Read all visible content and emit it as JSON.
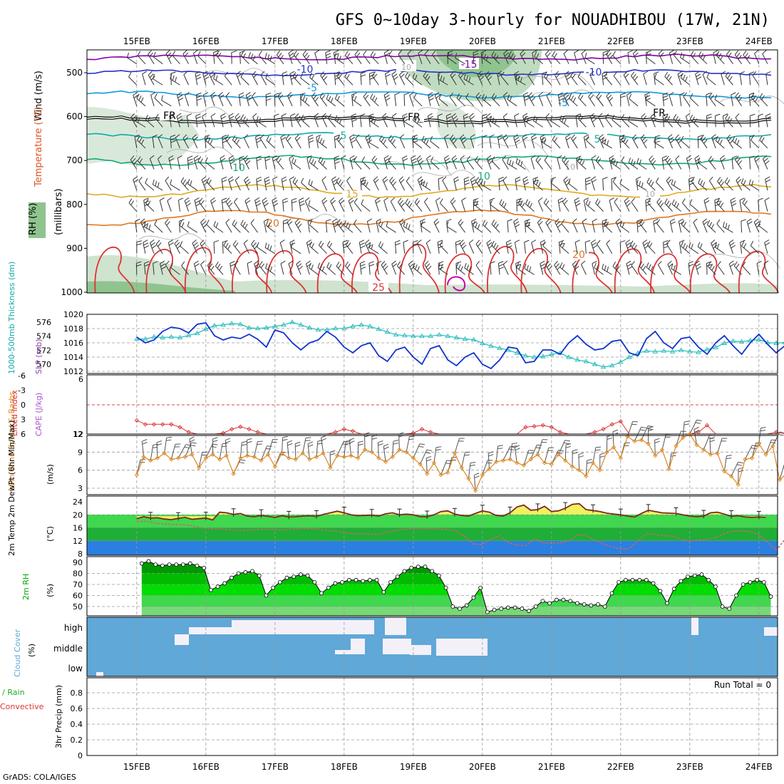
{
  "title": "GFS 0~10day 3-hourly for NOUADHIBOU (17W, 21N)",
  "credit": "GrADS: COLA/IGES",
  "date_labels": [
    "15FEB",
    "16FEB",
    "17FEB",
    "18FEB",
    "19FEB",
    "20FEB",
    "21FEB",
    "22FEB",
    "23FEB",
    "24FEB"
  ],
  "colors": {
    "rh": "#8fbf8f",
    "temp_warm": "#dd2222",
    "temp_cool": "#2266cc",
    "frz": "#000000",
    "slp": "#1133cc",
    "thick": "#22bbbb",
    "li": "#dd3333",
    "wind": "#dd8822",
    "rh2m": "#00aa00",
    "cloud": "#5fa8d8"
  },
  "panels": {
    "upper": {
      "ylabel_wind": "Wind (m/s)",
      "ylabel_temp": "Temperature (°C)",
      "ylabel_rh": "RH (%)",
      "ylabel_mb": "(millibars)",
      "ticks": [
        "500",
        "600",
        "700",
        "800",
        "900",
        "1000"
      ],
      "freezing_label": "FR",
      "contour_labels": [
        {
          "text": "-15",
          "color": "#8800aa"
        },
        {
          "text": "-10",
          "color": "#2233cc"
        },
        {
          "text": "-10",
          "color": "#2233cc"
        },
        {
          "text": "-5",
          "color": "#1199dd"
        },
        {
          "text": "-5",
          "color": "#1199dd"
        },
        {
          "text": "FR",
          "color": "#000000"
        },
        {
          "text": "FR",
          "color": "#000000"
        },
        {
          "text": "FR",
          "color": "#000000"
        },
        {
          "text": "5",
          "color": "#11aaaa"
        },
        {
          "text": "5",
          "color": "#11aaaa"
        },
        {
          "text": "10",
          "color": "#11aa77"
        },
        {
          "text": "10",
          "color": "#11aa77"
        },
        {
          "text": "15",
          "color": "#ddaa22"
        },
        {
          "text": "20",
          "color": "#dd7722"
        },
        {
          "text": "20",
          "color": "#dd7722"
        },
        {
          "text": "25",
          "color": "#dd3333"
        },
        {
          "text": "10",
          "color": "#aaaaaa"
        },
        {
          "text": "10",
          "color": "#aaaaaa"
        },
        {
          "text": "10",
          "color": "#aaaaaa"
        }
      ]
    },
    "slp": {
      "ylabel_thick": "1000-500mb Thickness (dm)",
      "ylabel_slp": "SLP (mb)",
      "left_ticks": [
        "576",
        "574",
        "572",
        "570"
      ],
      "right_ticks": [
        "1020",
        "1018",
        "1016",
        "1014",
        "1012"
      ]
    },
    "li": {
      "ylabel_li": "Lifted Index",
      "ylabel_cape": "CAPE (J/kg)",
      "left_ticks": [
        "-6",
        "-3",
        "0",
        "3",
        "6"
      ],
      "right_ticks": [
        "6",
        "12"
      ]
    },
    "wind10m": {
      "ylabel": "10m Wind Speed & Barbs",
      "ylabel_unit": "(m/s)",
      "ticks": [
        "12",
        "9",
        "6",
        "3"
      ]
    },
    "temp2m": {
      "ylabel": "2m Temp 2m DewPt (6hr Min/Max)",
      "ylabel_unit": "(°C)",
      "ticks": [
        "24",
        "20",
        "16",
        "12",
        "8"
      ]
    },
    "rh2m": {
      "ylabel": "2m RH",
      "ylabel_unit": "(%)",
      "ticks": [
        "90",
        "80",
        "70",
        "60",
        "50"
      ]
    },
    "cloud": {
      "ylabel": "Cloud Cover",
      "ylabel_unit": "(%)",
      "levels": [
        "high",
        "middle",
        "low"
      ]
    },
    "precip": {
      "ylabel_a": "Total / Rain",
      "ylabel_b": "Convective",
      "ylabel_unit": "3hr Precip (mm)",
      "ticks": [
        "0.8",
        "0.6",
        "0.4",
        "0.2",
        "0"
      ],
      "run_total": "Run Total = 0"
    }
  },
  "chart_data": [
    {
      "type": "line",
      "name": "SLP",
      "x_unit": "days since 15FEB 00Z",
      "ylabel": "SLP (mb)",
      "ylim": [
        1011,
        1021
      ],
      "values": [
        1016.8,
        1016.0,
        1016.4,
        1017.6,
        1018.2,
        1018.0,
        1017.4,
        1018.6,
        1018.8,
        1017.0,
        1016.4,
        1016.8,
        1016.6,
        1017.2,
        1016.5,
        1015.4,
        1017.8,
        1017.4,
        1016.0,
        1015.0,
        1016.0,
        1016.4,
        1017.6,
        1016.8,
        1015.4,
        1014.6,
        1015.6,
        1016.0,
        1014.2,
        1013.4,
        1015.0,
        1015.4,
        1014.0,
        1013.0,
        1015.2,
        1015.6,
        1013.6,
        1012.8,
        1014.0,
        1014.6,
        1013.0,
        1012.4,
        1013.6,
        1015.4,
        1015.2,
        1013.2,
        1013.4,
        1015.0,
        1015.0,
        1014.4,
        1016.0,
        1017.0,
        1015.8,
        1015.0,
        1015.2,
        1016.2,
        1016.4,
        1014.6,
        1014.2,
        1016.6,
        1017.6,
        1016.0,
        1015.2,
        1016.6,
        1016.8,
        1015.4,
        1014.4,
        1016.0,
        1017.0,
        1015.6,
        1014.4,
        1016.0,
        1017.2,
        1015.8,
        1014.6,
        1015.6,
        1016.6,
        1015.2,
        1014.6,
        1016.4,
        1016.4,
        1014.8,
        1014.2,
        1015.4
      ]
    },
    {
      "type": "line",
      "name": "Thickness",
      "x_unit": "days since 15FEB 00Z",
      "ylabel": "1000-500mb Thickness (dm)",
      "ylim": [
        569.4,
        577.5
      ],
      "values": [
        573.6,
        573.6,
        573.9,
        573.8,
        573.9,
        573.8,
        574.1,
        574.4,
        575.0,
        575.5,
        575.6,
        575.8,
        575.7,
        575.2,
        575.1,
        575.2,
        575.4,
        575.6,
        576.0,
        575.6,
        575.2,
        574.9,
        574.9,
        575.1,
        575.1,
        575.4,
        575.6,
        575.4,
        575.0,
        574.6,
        574.2,
        574.1,
        574.0,
        574.0,
        574.0,
        574.2,
        574.0,
        573.8,
        573.6,
        573.5,
        573.0,
        572.6,
        572.3,
        572.0,
        571.6,
        571.2,
        571.0,
        571.1,
        571.4,
        571.6,
        571.0,
        570.6,
        570.4,
        570.0,
        569.6,
        569.8,
        570.3,
        571.0,
        571.6,
        571.9,
        571.8,
        571.9,
        571.8,
        572.0,
        571.8,
        571.7,
        572.1,
        572.4,
        573.0,
        573.3,
        573.2,
        573.4,
        573.5,
        573.1,
        573.0,
        573.1,
        573.4,
        573.6,
        573.9,
        574.0,
        573.9,
        573.8,
        573.2,
        573.0
      ]
    },
    {
      "type": "line",
      "name": "Lifted Index",
      "x_unit": "days since 15FEB 00Z",
      "ylabel": "Lifted Index",
      "ylim": [
        -6,
        6
      ],
      "values": [
        3.2,
        4.0,
        4.0,
        4.0,
        4.0,
        4.6,
        5.6,
        6.0,
        6.0,
        6.0,
        5.8,
        5.0,
        4.5,
        5.0,
        5.6,
        6.0,
        6.0,
        6.0,
        6.0,
        6.0,
        6.0,
        6.0,
        6.0,
        5.6,
        5.0,
        5.4,
        6.0,
        6.0,
        6.0,
        6.0,
        6.0,
        6.0,
        5.8,
        5.0,
        5.6,
        6.0,
        6.0,
        6.0,
        6.0,
        6.0,
        6.0,
        6.0,
        6.0,
        6.0,
        6.0,
        4.6,
        4.4,
        4.2,
        4.6,
        5.6,
        6.0,
        6.0,
        6.0,
        5.6,
        5.0,
        4.0,
        3.4,
        6.0,
        6.0,
        6.0,
        6.0,
        6.0,
        6.0,
        6.0,
        6.0,
        5.6,
        4.2,
        6.0,
        6.0,
        6.0,
        6.0,
        6.0,
        6.0,
        6.0,
        5.6,
        6.0,
        6.0,
        6.0,
        6.0,
        6.0,
        6.0,
        6.0,
        5.6,
        6.0
      ]
    },
    {
      "type": "line",
      "name": "10m Wind Speed",
      "x_unit": "days since 15FEB 00Z",
      "ylabel": "10m Wind Speed (m/s)",
      "ylim": [
        2,
        13
      ],
      "values": [
        5.2,
        8.2,
        7.6,
        8.0,
        8.8,
        7.8,
        8.0,
        8.2,
        8.6,
        6.4,
        8.0,
        8.6,
        7.8,
        8.4,
        5.4,
        8.0,
        8.4,
        8.2,
        7.6,
        8.6,
        6.6,
        8.8,
        8.0,
        7.8,
        8.8,
        7.8,
        8.2,
        8.8,
        6.4,
        8.4,
        8.2,
        8.4,
        8.0,
        9.4,
        9.0,
        8.0,
        7.4,
        8.2,
        9.4,
        9.0,
        8.0,
        7.0,
        5.4,
        7.2,
        5.2,
        5.6,
        8.8,
        6.4,
        4.6,
        2.6,
        5.2,
        6.2,
        7.4,
        7.6,
        7.8,
        7.2,
        6.8,
        7.8,
        8.6,
        7.2,
        7.0,
        8.6,
        7.6,
        6.6,
        6.0,
        5.0,
        7.2,
        6.0,
        9.0,
        9.8,
        8.0,
        11.6,
        10.8,
        11.0,
        10.4,
        8.4,
        9.4,
        6.2,
        10.0,
        11.4,
        12.0,
        10.2,
        9.4,
        8.6,
        8.8,
        5.8,
        5.0,
        3.6,
        7.8,
        8.0,
        10.4,
        8.6,
        10.0,
        4.4,
        5.4
      ]
    },
    {
      "type": "line",
      "name": "2m Temp",
      "x_unit": "days since 15FEB 00Z",
      "ylabel": "2m Temp (°C)",
      "ylim": [
        7,
        25
      ],
      "values": [
        18.8,
        19.4,
        19.0,
        19.1,
        18.7,
        18.5,
        18.9,
        19.2,
        18.6,
        18.8,
        19.0,
        18.4,
        20.8,
        20.6,
        20.1,
        20.4,
        19.6,
        19.4,
        19.8,
        19.5,
        19.2,
        19.7,
        19.3,
        19.4,
        19.6,
        19.7,
        19.5,
        20.1,
        20.6,
        21.1,
        20.6,
        20.0,
        19.7,
        19.8,
        19.9,
        19.6,
        20.3,
        20.6,
        20.0,
        20.2,
        20.0,
        19.4,
        19.4,
        20.0,
        21.0,
        21.2,
        20.2,
        19.8,
        19.6,
        20.4,
        21.2,
        20.8,
        19.8,
        19.6,
        20.6,
        22.4,
        23.0,
        21.4,
        21.6,
        22.6,
        21.0,
        21.2,
        22.0,
        23.2,
        23.4,
        21.6,
        21.3,
        21.0,
        20.5,
        20.2,
        20.0,
        19.6,
        19.3,
        20.4,
        21.4,
        21.0,
        20.6,
        20.5,
        20.4,
        20.0,
        19.6,
        19.4,
        19.6,
        20.6,
        20.8,
        20.2,
        19.5,
        19.7,
        19.3,
        19.2,
        19.3,
        19.2
      ]
    },
    {
      "type": "line",
      "name": "2m DewPt",
      "x_unit": "days since 15FEB 00Z",
      "ylabel": "2m DewPt (°C)",
      "ylim": [
        7,
        25
      ],
      "values": [
        18.0,
        18.0,
        17.5,
        17.2,
        17.0,
        17.0,
        16.8,
        16.2,
        15.8,
        15.7,
        15.6,
        15.3,
        15.2,
        15.3,
        15.5,
        15.5,
        15.4,
        15.3,
        15.6,
        15.8,
        15.8,
        15.6,
        15.2,
        15.0,
        14.5,
        14.2,
        14.2,
        14.0,
        14.0,
        14.8,
        15.2,
        15.5,
        15.7,
        15.8,
        15.8,
        15.6,
        15.4,
        15.0,
        13.2,
        11.0,
        10.8,
        12.6,
        13.6,
        11.5,
        10.6,
        10.5,
        12.6,
        11.4,
        11.2,
        11.4,
        12.0,
        13.8,
        13.6,
        12.2,
        11.0,
        10.2,
        9.4,
        9.6,
        12.0,
        14.2,
        14.0,
        13.6,
        13.4,
        12.5,
        12.0,
        12.2,
        12.5,
        13.0,
        14.2,
        15.0,
        15.0,
        14.8,
        13.8,
        11.6,
        9.0,
        12.4,
        14.8,
        15.2,
        14.6,
        13.8,
        12.8,
        12.0,
        11.2
      ]
    },
    {
      "type": "area",
      "name": "2m RH",
      "x_unit": "days since 15FEB 00Z",
      "ylabel": "2m RH (%)",
      "ylim": [
        40,
        92
      ],
      "values": [
        89,
        91,
        88,
        87,
        88,
        88,
        88,
        89,
        87,
        85,
        65,
        68,
        71,
        76,
        80,
        81,
        82,
        78,
        60,
        67,
        72,
        76,
        77,
        79,
        78,
        72,
        62,
        67,
        71,
        72,
        74,
        74,
        73,
        74,
        74,
        63,
        72,
        77,
        82,
        85,
        86,
        86,
        82,
        78,
        67,
        50,
        48,
        51,
        58,
        67,
        45,
        47,
        48,
        49,
        49,
        48,
        46,
        50,
        55,
        53,
        56,
        56,
        55,
        53,
        52,
        51,
        52,
        50,
        62,
        72,
        74,
        74,
        74,
        74,
        71,
        64,
        53,
        66,
        73,
        77,
        78,
        79,
        74,
        68,
        50,
        48,
        60,
        70,
        72,
        74,
        72,
        59
      ]
    }
  ]
}
